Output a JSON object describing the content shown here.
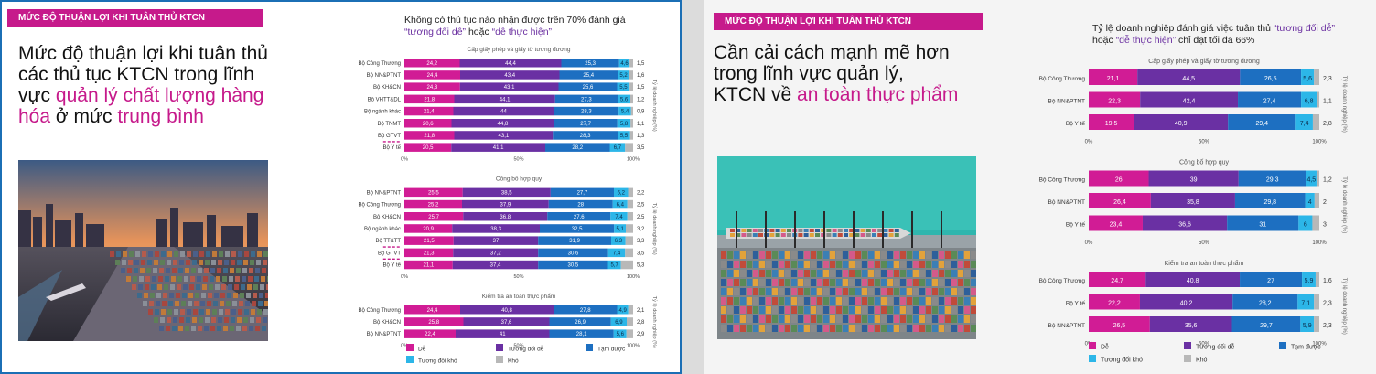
{
  "colors": {
    "magenta": "#c61a8b",
    "de": "#d11c95",
    "tuong_doi_de": "#6a30a3",
    "tam_duoc": "#1d6fc1",
    "tuong_doi_kho": "#2cb6e8",
    "kho": "#b8b8b8"
  },
  "legend": {
    "items": [
      {
        "label": "Dễ",
        "color": "#d11c95"
      },
      {
        "label": "Tương đối dễ",
        "color": "#6a30a3"
      },
      {
        "label": "Tạm được",
        "color": "#1d6fc1"
      },
      {
        "label": "Tương đối khó",
        "color": "#2cb6e8"
      },
      {
        "label": "Khó",
        "color": "#b8b8b8"
      }
    ]
  },
  "panels": [
    {
      "tag": "MỨC ĐỘ THUẬN LỢI KHI TUÂN THỦ KTCN",
      "headline_parts": [
        {
          "text": "Mức độ thuận lợi khi tuân thủ các thủ tục KTCN trong lĩnh vực ",
          "hl": false
        },
        {
          "text": "quản lý chất lượng hàng hóa",
          "hl": true
        },
        {
          "text": " ở mức ",
          "hl": false
        },
        {
          "text": "trung bình",
          "hl": true
        }
      ],
      "chart_title_parts": [
        {
          "text": "Không có thủ tục nào nhận được trên 70% đánh giá ",
          "q": false
        },
        {
          "text": "“tương đối dễ”",
          "q": true
        },
        {
          "text": " hoặc ",
          "q": false
        },
        {
          "text": "“dễ thực hiện”",
          "q": true
        }
      ],
      "photo_label": "port-sunset-photo",
      "axis_side_label": "Tỷ lệ doanh nghiệp (%)"
    },
    {
      "tag": "MỨC ĐỘ THUẬN LỢI KHI TUÂN THỦ KTCN",
      "headline_parts": [
        {
          "text": "Cần cải cách mạnh mẽ hơn trong lĩnh vực quản lý, KTCN về ",
          "hl": false
        },
        {
          "text": "an toàn thực phẩm",
          "hl": true
        }
      ],
      "chart_title_parts": [
        {
          "text": "Tỷ lệ doanh nghiệp đánh giá việc tuân thủ ",
          "q": false
        },
        {
          "text": "“tương đối dễ”",
          "q": true
        },
        {
          "text": " hoặc ",
          "q": false
        },
        {
          "text": "“dễ thực hiện”",
          "q": true
        },
        {
          "text": " chỉ đạt tối đa 66%",
          "q": false
        }
      ],
      "photo_label": "aerial-port-photo",
      "axis_side_label": "Tỷ lệ doanh nghiệp (%)"
    }
  ],
  "chart_data": [
    {
      "type": "bar",
      "stacked": true,
      "orientation": "horizontal",
      "series_names": [
        "Dễ",
        "Tương đối dễ",
        "Tạm được",
        "Tương đối khó",
        "Khó"
      ],
      "axis_ticks": [
        "0%",
        "50%",
        "100%"
      ],
      "groups": [
        {
          "title": "Cấp giấy phép và giấy tờ tương đương",
          "rows": [
            {
              "label": "Bộ Công Thương",
              "values": [
                24.2,
                44.4,
                25.3,
                4.6,
                1.5
              ]
            },
            {
              "label": "Bộ NN&PTNT",
              "values": [
                24.4,
                43.4,
                25.4,
                5.2,
                1.6
              ]
            },
            {
              "label": "Bộ KH&CN",
              "values": [
                24.3,
                43.1,
                25.6,
                5.5,
                1.5
              ]
            },
            {
              "label": "Bộ VHTT&DL",
              "values": [
                21.8,
                44.1,
                27.3,
                5.6,
                1.2
              ]
            },
            {
              "label": "Bộ ngành khác",
              "values": [
                21.4,
                44,
                28.3,
                5.4,
                0.9
              ]
            },
            {
              "label": "Bộ TNMT",
              "values": [
                20.6,
                44.8,
                27.7,
                5.8,
                1.1
              ]
            },
            {
              "label": "Bộ GTVT",
              "values": [
                21.8,
                43.1,
                28.3,
                5.5,
                1.3
              ]
            },
            {
              "label": "Bộ Y tế",
              "values": [
                20.5,
                41.1,
                28.2,
                6.7,
                3.5
              ],
              "flag": true
            }
          ]
        },
        {
          "title": "Công bố hợp quy",
          "rows": [
            {
              "label": "Bộ NN&PTNT",
              "values": [
                25.5,
                38.5,
                27.7,
                6.2,
                2.2
              ]
            },
            {
              "label": "Bộ Công Thương",
              "values": [
                25.2,
                37.9,
                28,
                6.4,
                2.5
              ]
            },
            {
              "label": "Bộ KH&CN",
              "values": [
                25.7,
                36.8,
                27.6,
                7.4,
                2.5
              ]
            },
            {
              "label": "Bộ ngành khác",
              "values": [
                20.9,
                38.3,
                32.5,
                5.1,
                3.2
              ]
            },
            {
              "label": "Bộ TT&TT",
              "values": [
                21.5,
                37,
                31.9,
                6.3,
                3.3
              ]
            },
            {
              "label": "Bộ GTVT",
              "values": [
                21.3,
                37.2,
                30.6,
                7.4,
                3.5
              ],
              "flag": true
            },
            {
              "label": "Bộ Y tế",
              "values": [
                21.1,
                37.4,
                30.5,
                5.7,
                5.3
              ],
              "flag": true
            }
          ]
        },
        {
          "title": "Kiểm tra an toàn thực phẩm",
          "rows": [
            {
              "label": "Bộ Công Thương",
              "values": [
                24.4,
                40.8,
                27.8,
                4.9,
                2.1
              ]
            },
            {
              "label": "Bộ KH&CN",
              "values": [
                25.8,
                37.6,
                26.9,
                6.9,
                2.8
              ]
            },
            {
              "label": "Bộ NN&PTNT",
              "values": [
                22.4,
                41,
                28.1,
                5.6,
                2.9
              ]
            }
          ]
        }
      ]
    },
    {
      "type": "bar",
      "stacked": true,
      "orientation": "horizontal",
      "series_names": [
        "Dễ",
        "Tương đối dễ",
        "Tạm được",
        "Tương đối khó",
        "Khó"
      ],
      "axis_ticks": [
        "0%",
        "50%",
        "100%"
      ],
      "groups": [
        {
          "title": "Cấp giấy phép và giấy tờ tương đương",
          "rows": [
            {
              "label": "Bộ Công Thương",
              "values": [
                21.1,
                44.5,
                26.5,
                5.6,
                2.3
              ]
            },
            {
              "label": "Bộ NN&PTNT",
              "values": [
                22.3,
                42.4,
                27.4,
                6.8,
                1.1
              ]
            },
            {
              "label": "Bộ Y tế",
              "values": [
                19.5,
                40.9,
                29.4,
                7.4,
                2.8
              ]
            }
          ]
        },
        {
          "title": "Công bố hợp quy",
          "rows": [
            {
              "label": "Bộ Công Thương",
              "values": [
                26,
                39,
                29.3,
                4.5,
                1.2
              ]
            },
            {
              "label": "Bộ NN&PTNT",
              "values": [
                26.4,
                35.8,
                29.8,
                4,
                2
              ]
            },
            {
              "label": "Bộ Y tế",
              "values": [
                23.4,
                36.6,
                31,
                6,
                3
              ]
            }
          ]
        },
        {
          "title": "Kiểm tra an toàn thực phẩm",
          "rows": [
            {
              "label": "Bộ Công Thương",
              "values": [
                24.7,
                40.8,
                27,
                5.9,
                1.6
              ]
            },
            {
              "label": "Bộ Y tế",
              "values": [
                22.2,
                40.2,
                28.2,
                7.1,
                2.3
              ]
            },
            {
              "label": "Bộ NN&PTNT",
              "values": [
                26.5,
                35.6,
                29.7,
                5.9,
                2.3
              ]
            }
          ]
        }
      ]
    }
  ]
}
